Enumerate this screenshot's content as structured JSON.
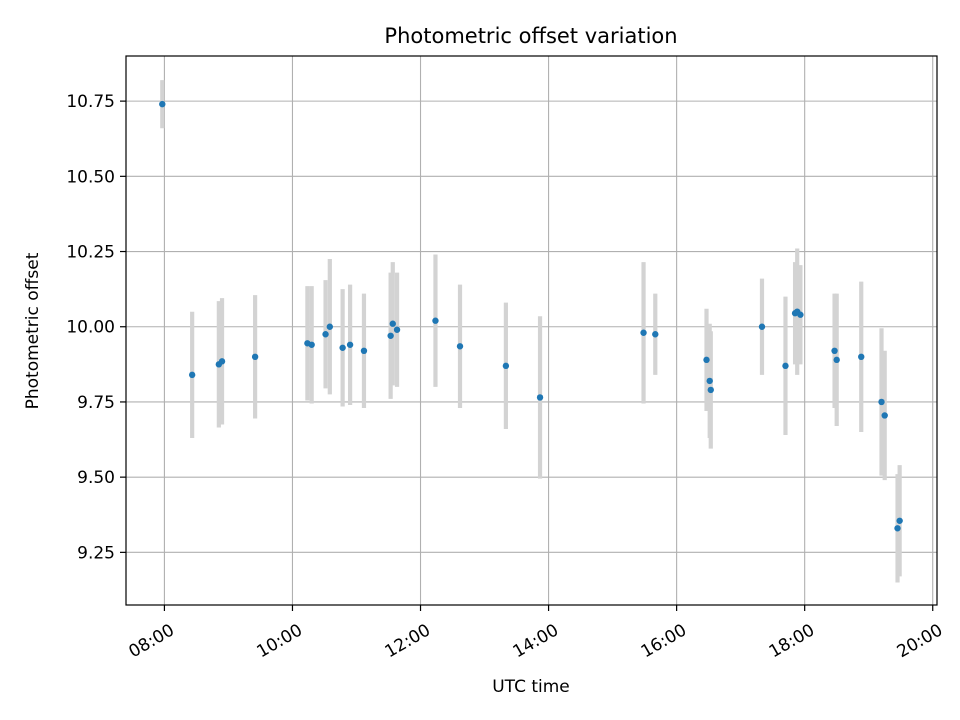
{
  "chart_data": {
    "type": "scatter",
    "title": "Photometric offset variation",
    "xlabel": "UTC time",
    "ylabel": "Photometric offset",
    "x_ticks": [
      "08:00",
      "10:00",
      "12:00",
      "14:00",
      "16:00",
      "18:00",
      "20:00"
    ],
    "y_ticks": [
      "9.25",
      "9.50",
      "9.75",
      "10.00",
      "10.25",
      "10.50",
      "10.75"
    ],
    "xlim": [
      "07:24",
      "20:04"
    ],
    "ylim": [
      9.075,
      10.9
    ],
    "grid": true,
    "legend": "none",
    "colors": {
      "points": "#1f77b4",
      "errorbars": "#d3d3d3",
      "grid": "#b0b0b0"
    },
    "points": [
      {
        "t": "07:58",
        "y": 10.74,
        "err": 0.08
      },
      {
        "t": "08:26",
        "y": 9.84,
        "err": 0.21
      },
      {
        "t": "08:51",
        "y": 9.875,
        "err": 0.21
      },
      {
        "t": "08:54",
        "y": 9.885,
        "err": 0.21
      },
      {
        "t": "09:25",
        "y": 9.9,
        "err": 0.205
      },
      {
        "t": "10:14",
        "y": 9.945,
        "err": 0.19
      },
      {
        "t": "10:18",
        "y": 9.94,
        "err": 0.195
      },
      {
        "t": "10:31",
        "y": 9.975,
        "err": 0.18
      },
      {
        "t": "10:35",
        "y": 10.0,
        "err": 0.225
      },
      {
        "t": "10:47",
        "y": 9.93,
        "err": 0.195
      },
      {
        "t": "10:54",
        "y": 9.94,
        "err": 0.2
      },
      {
        "t": "11:07",
        "y": 9.92,
        "err": 0.19
      },
      {
        "t": "11:32",
        "y": 9.97,
        "err": 0.21
      },
      {
        "t": "11:34",
        "y": 10.01,
        "err": 0.205
      },
      {
        "t": "11:38",
        "y": 9.99,
        "err": 0.19
      },
      {
        "t": "12:14",
        "y": 10.02,
        "err": 0.22
      },
      {
        "t": "12:37",
        "y": 9.935,
        "err": 0.205
      },
      {
        "t": "13:20",
        "y": 9.87,
        "err": 0.21
      },
      {
        "t": "13:52",
        "y": 9.765,
        "err": 0.27
      },
      {
        "t": "15:29",
        "y": 9.98,
        "err": 0.235
      },
      {
        "t": "15:40",
        "y": 9.975,
        "err": 0.135
      },
      {
        "t": "16:28",
        "y": 9.89,
        "err": 0.17
      },
      {
        "t": "16:31",
        "y": 9.82,
        "err": 0.19
      },
      {
        "t": "16:32",
        "y": 9.79,
        "err": 0.195
      },
      {
        "t": "17:20",
        "y": 10.0,
        "err": 0.16
      },
      {
        "t": "17:42",
        "y": 9.87,
        "err": 0.23
      },
      {
        "t": "17:51",
        "y": 10.045,
        "err": 0.17
      },
      {
        "t": "17:53",
        "y": 10.05,
        "err": 0.21
      },
      {
        "t": "17:56",
        "y": 10.04,
        "err": 0.165
      },
      {
        "t": "18:28",
        "y": 9.92,
        "err": 0.19
      },
      {
        "t": "18:30",
        "y": 9.89,
        "err": 0.22
      },
      {
        "t": "18:53",
        "y": 9.9,
        "err": 0.25
      },
      {
        "t": "19:12",
        "y": 9.75,
        "err": 0.245
      },
      {
        "t": "19:15",
        "y": 9.705,
        "err": 0.215
      },
      {
        "t": "19:27",
        "y": 9.33,
        "err": 0.18
      },
      {
        "t": "19:29",
        "y": 9.355,
        "err": 0.185
      }
    ]
  }
}
